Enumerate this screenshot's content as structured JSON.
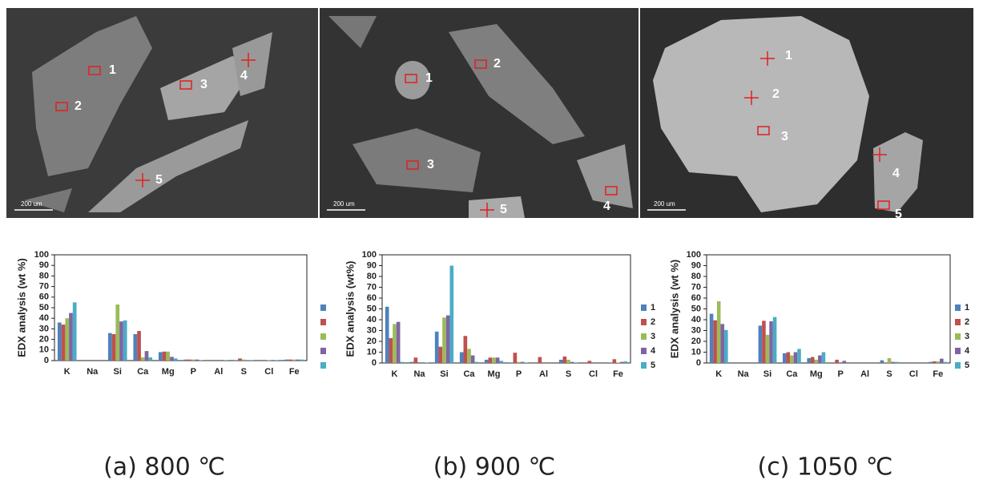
{
  "images": [
    {
      "scale": "200 um",
      "markers": [
        "1",
        "2",
        "3",
        "4",
        "5"
      ]
    },
    {
      "scale": "200 um",
      "markers": [
        "1",
        "2",
        "3",
        "4",
        "5"
      ]
    },
    {
      "scale": "200 um",
      "markers": [
        "1",
        "2",
        "3",
        "4",
        "5"
      ]
    }
  ],
  "chart_data": [
    {
      "type": "bar",
      "caption": "(a) 800 ℃",
      "y_label": "EDX analysis (wt %)",
      "categories": [
        "K",
        "Na",
        "Si",
        "Ca",
        "Mg",
        "P",
        "Al",
        "S",
        "Cl",
        "Fe"
      ],
      "ylim": [
        0,
        100
      ],
      "yticks": [
        0,
        10,
        20,
        30,
        40,
        50,
        60,
        70,
        80,
        90,
        100
      ],
      "series": [
        {
          "color": "#4f81bd",
          "values": [
            36,
            0,
            26,
            25,
            8,
            1,
            0,
            0.5,
            0,
            1
          ]
        },
        {
          "color": "#c0504d",
          "values": [
            34,
            0,
            25,
            28,
            8.5,
            1,
            0,
            2,
            0,
            1
          ]
        },
        {
          "color": "#9bbb59",
          "values": [
            40,
            0,
            53,
            3,
            8.5,
            1,
            0,
            1,
            0.5,
            1
          ]
        },
        {
          "color": "#8064a2",
          "values": [
            45,
            0,
            37,
            9,
            3.5,
            1,
            0,
            0.5,
            0,
            1
          ]
        },
        {
          "color": "#4bacc6",
          "values": [
            55,
            0,
            38,
            3,
            2,
            0.5,
            0.5,
            0.5,
            0.5,
            1
          ]
        }
      ]
    },
    {
      "type": "bar",
      "caption": "(b) 900 ℃",
      "y_label": "EDX analysis (wt%)",
      "categories": [
        "K",
        "Na",
        "Si",
        "Ca",
        "Mg",
        "P",
        "Al",
        "S",
        "Cl",
        "Fe"
      ],
      "ylim": [
        0,
        100
      ],
      "yticks": [
        0,
        10,
        20,
        30,
        40,
        50,
        60,
        70,
        80,
        90,
        100
      ],
      "series": [
        {
          "name": "1",
          "color": "#4f81bd",
          "values": [
            52,
            1,
            29,
            10,
            3,
            0.5,
            0,
            3,
            0,
            0.5
          ]
        },
        {
          "name": "2",
          "color": "#c0504d",
          "values": [
            23,
            5,
            15,
            25,
            5,
            9.5,
            5.5,
            6,
            2,
            3.5
          ]
        },
        {
          "name": "3",
          "color": "#9bbb59",
          "values": [
            36,
            0,
            42,
            13,
            5,
            1,
            0,
            3,
            0,
            0.5
          ]
        },
        {
          "name": "4",
          "color": "#8064a2",
          "values": [
            38,
            0,
            44,
            7,
            5,
            1,
            0,
            1,
            0,
            1
          ]
        },
        {
          "name": "5",
          "color": "#4bacc6",
          "values": [
            1,
            0.5,
            90,
            1,
            2,
            0.5,
            0,
            0.5,
            0,
            1.5
          ]
        }
      ]
    },
    {
      "type": "bar",
      "caption": "(c) 1050 ℃",
      "y_label": "EDX analysis (wt %)",
      "categories": [
        "K",
        "Na",
        "Si",
        "Ca",
        "Mg",
        "P",
        "Al",
        "S",
        "Cl",
        "Fe"
      ],
      "ylim": [
        0,
        100
      ],
      "yticks": [
        0,
        10,
        20,
        30,
        40,
        50,
        60,
        70,
        80,
        90,
        100
      ],
      "series": [
        {
          "name": "1",
          "color": "#4f81bd",
          "values": [
            45.5,
            0,
            34.5,
            9,
            4.5,
            0,
            0,
            2.5,
            0,
            1
          ]
        },
        {
          "name": "2",
          "color": "#c0504d",
          "values": [
            39.5,
            0,
            39,
            10,
            5.5,
            3,
            0,
            0.5,
            0,
            1.5
          ]
        },
        {
          "name": "3",
          "color": "#9bbb59",
          "values": [
            57,
            0,
            26,
            7,
            3,
            0,
            0,
            4.5,
            0,
            1.5
          ]
        },
        {
          "name": "4",
          "color": "#8064a2",
          "values": [
            36,
            0,
            38.5,
            10,
            7,
            2,
            0,
            1,
            0,
            4
          ]
        },
        {
          "name": "5",
          "color": "#4bacc6",
          "values": [
            30.5,
            0,
            42.5,
            13,
            10,
            0,
            0,
            1,
            0,
            1
          ]
        }
      ]
    }
  ]
}
